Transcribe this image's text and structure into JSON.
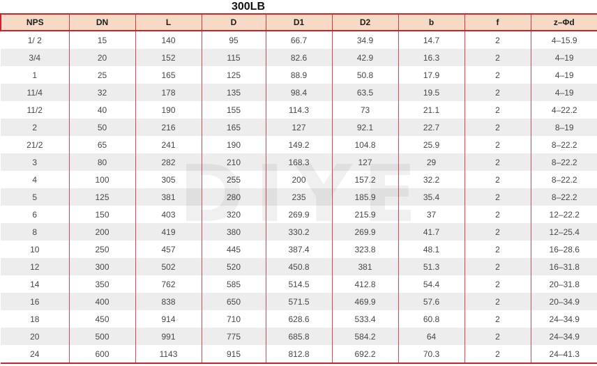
{
  "title": "300LB",
  "watermark": "DIYE",
  "colors": {
    "header_bg": "#f7dac6",
    "line_red": "#d5393d",
    "line_soft_red": "#e0494c",
    "heavy_red": "#c9252b",
    "stripe": "#ededed"
  },
  "table": {
    "columns": [
      "NPS",
      "DN",
      "L",
      "D",
      "D1",
      "D2",
      "b",
      "f",
      "z–Φd"
    ],
    "rows": [
      [
        "1/ 2",
        "15",
        "140",
        "95",
        "66.7",
        "34.9",
        "14.7",
        "2",
        "4–15.9"
      ],
      [
        "3/4",
        "20",
        "152",
        "115",
        "82.6",
        "42.9",
        "16.3",
        "2",
        "4–19"
      ],
      [
        "1",
        "25",
        "165",
        "125",
        "88.9",
        "50.8",
        "17.9",
        "2",
        "4–19"
      ],
      [
        "11/4",
        "32",
        "178",
        "135",
        "98.4",
        "63.5",
        "19.5",
        "2",
        "4–19"
      ],
      [
        "11/2",
        "40",
        "190",
        "155",
        "114.3",
        "73",
        "21.1",
        "2",
        "4–22.2"
      ],
      [
        "2",
        "50",
        "216",
        "165",
        "127",
        "92.1",
        "22.7",
        "2",
        "8–19"
      ],
      [
        "21/2",
        "65",
        "241",
        "190",
        "149.2",
        "104.8",
        "25.9",
        "2",
        "8–22.2"
      ],
      [
        "3",
        "80",
        "282",
        "210",
        "168.3",
        "127",
        "29",
        "2",
        "8–22.2"
      ],
      [
        "4",
        "100",
        "305",
        "255",
        "200",
        "157.2",
        "32.2",
        "2",
        "8–22.2"
      ],
      [
        "5",
        "125",
        "381",
        "280",
        "235",
        "185.9",
        "35.4",
        "2",
        "8–22.2"
      ],
      [
        "6",
        "150",
        "403",
        "320",
        "269.9",
        "215.9",
        "37",
        "2",
        "12–22.2"
      ],
      [
        "8",
        "200",
        "419",
        "380",
        "330.2",
        "269.9",
        "41.7",
        "2",
        "12–25.4"
      ],
      [
        "10",
        "250",
        "457",
        "445",
        "387.4",
        "323.8",
        "48.1",
        "2",
        "16–28.6"
      ],
      [
        "12",
        "300",
        "502",
        "520",
        "450.8",
        "381",
        "51.3",
        "2",
        "16–31.8"
      ],
      [
        "14",
        "350",
        "762",
        "585",
        "514.5",
        "412.8",
        "54.4",
        "2",
        "20–31.8"
      ],
      [
        "16",
        "400",
        "838",
        "650",
        "571.5",
        "469.9",
        "57.6",
        "2",
        "20–34.9"
      ],
      [
        "18",
        "450",
        "914",
        "710",
        "628.6",
        "533.4",
        "60.8",
        "2",
        "24–34.9"
      ],
      [
        "20",
        "500",
        "991",
        "775",
        "685.8",
        "584.2",
        "64",
        "2",
        "24–34.9"
      ],
      [
        "24",
        "600",
        "1143",
        "915",
        "812.8",
        "692.2",
        "70.3",
        "2",
        "24–41.3"
      ]
    ]
  }
}
